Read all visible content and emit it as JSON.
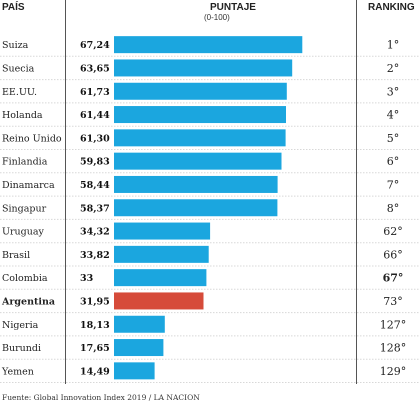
{
  "headers": {
    "country": "PAÍS",
    "score": "PUNTAJE",
    "score_range": "(0-100)",
    "ranking": "RANKING"
  },
  "source": "Fuente: Global Innovation Index 2019 / LA NACION",
  "colors": {
    "bar": "#1ba6df",
    "highlight": "#d64b3a",
    "divider": "#555555"
  },
  "chart_data": {
    "type": "bar",
    "orientation": "horizontal",
    "xlim": [
      0,
      100
    ],
    "highlight": "Argentina",
    "categories": [
      "Suiza",
      "Suecia",
      "EE.UU.",
      "Holanda",
      "Reino Unido",
      "Finlandia",
      "Dinamarca",
      "Singapur",
      "Uruguay",
      "Brasil",
      "Colombia",
      "Argentina",
      "Nigeria",
      "Burundi",
      "Yemen"
    ],
    "values": [
      67.24,
      63.65,
      61.73,
      61.44,
      61.3,
      59.83,
      58.44,
      58.37,
      34.32,
      33.82,
      33,
      31.95,
      18.13,
      17.65,
      14.49
    ],
    "value_labels": [
      "67,24",
      "63,65",
      "61,73",
      "61,44",
      "61,30",
      "59,83",
      "58,44",
      "58,37",
      "34,32",
      "33,82",
      "33",
      "31,95",
      "18,13",
      "17,65",
      "14,49"
    ],
    "rankings": [
      "1°",
      "2°",
      "3°",
      "4°",
      "5°",
      "6°",
      "7°",
      "8°",
      "62°",
      "66°",
      "67°",
      "73°",
      "127°",
      "128°",
      "129°"
    ],
    "bold_rankings": [
      "67°"
    ]
  }
}
